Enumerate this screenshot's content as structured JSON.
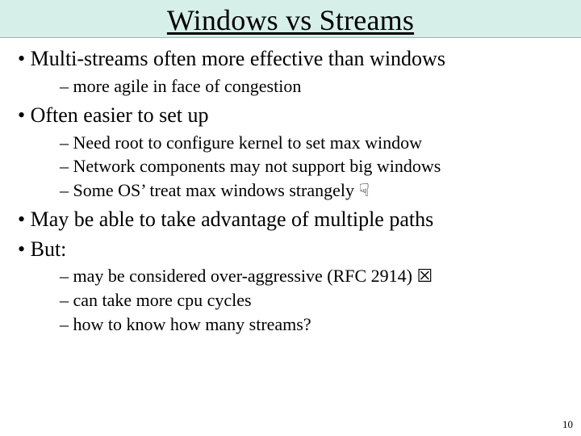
{
  "colors": {
    "title_band_bg": "#d6efe9",
    "slide_bg": "#ffffff",
    "text": "#000000"
  },
  "typography": {
    "title_fontsize_pt": 36,
    "bullet_fontsize_pt": 26,
    "sub_bullet_fontsize_pt": 22,
    "pagenum_fontsize_pt": 13,
    "font_family": "Times New Roman"
  },
  "title": "Windows vs Streams",
  "page_number": "10",
  "bullets": [
    {
      "text": "Multi-streams often more effective than windows",
      "sub": [
        "more agile in face of congestion"
      ]
    },
    {
      "text": "Often easier to set up",
      "sub": [
        "Need root to configure kernel to set max window",
        "Network components may not support big windows",
        "Some OS’ treat max windows strangely ☟"
      ]
    },
    {
      "text": "May be able to take advantage of multiple paths",
      "sub": []
    },
    {
      "text": "But:",
      "sub": [
        " may be considered over-aggressive (RFC 2914) ☒",
        "can take more cpu cycles",
        "how to know how many streams?"
      ]
    }
  ]
}
